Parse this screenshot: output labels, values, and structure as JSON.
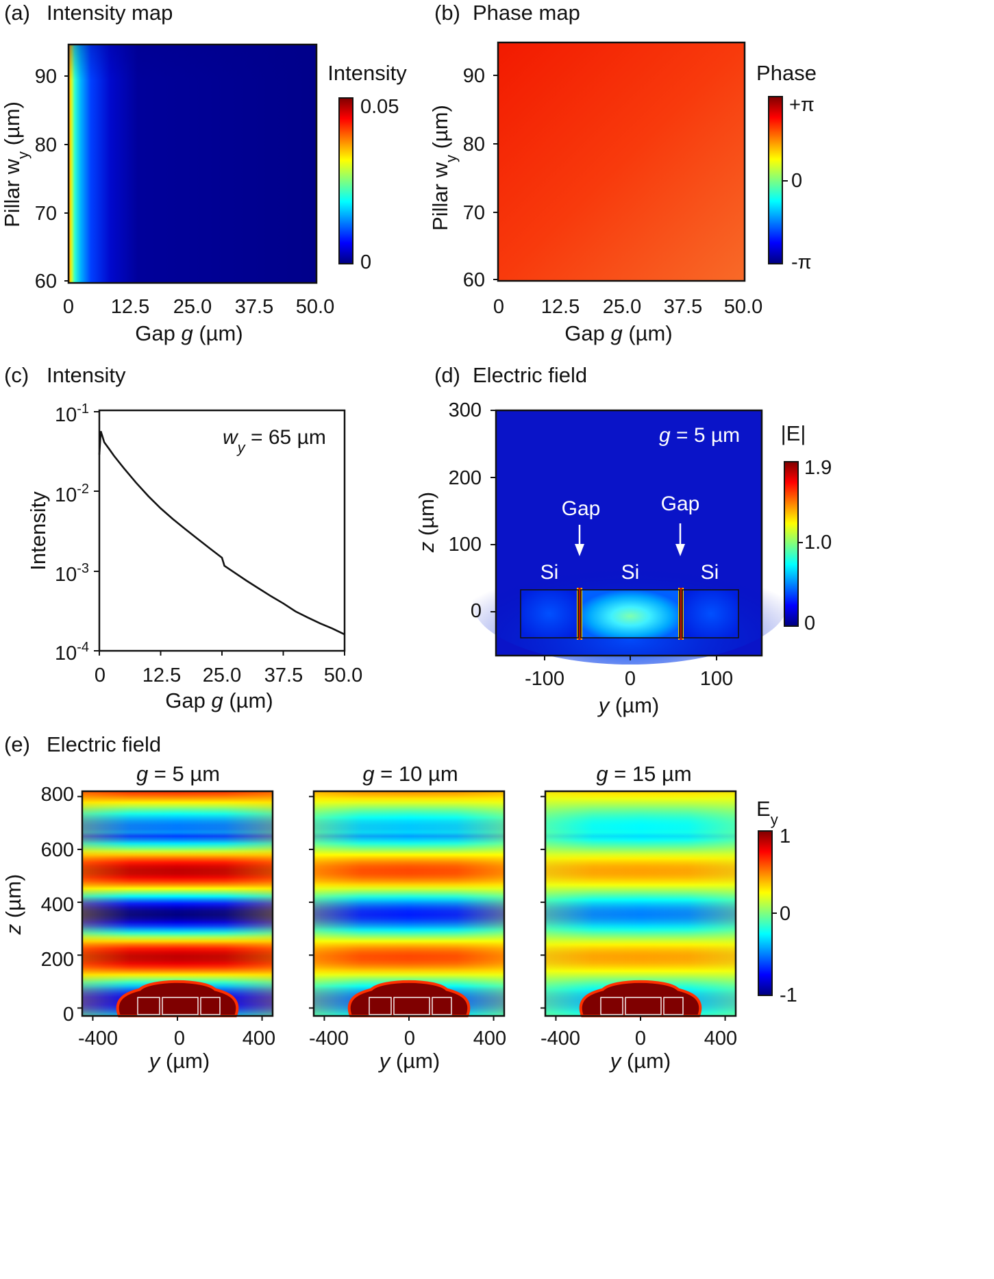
{
  "colors": {
    "jet": [
      "#00007f",
      "#0000ff",
      "#007fff",
      "#00ffff",
      "#7fff7f",
      "#ffff00",
      "#ff7f00",
      "#ff0000",
      "#7f0000"
    ],
    "axis": "#111111",
    "outline": "#ffffff"
  },
  "panels": {
    "a": {
      "letter": "(a)",
      "title": "Intensity map",
      "xlabel_pre": "Gap ",
      "xlabel_var": "g",
      "xlabel_post": " (µm)",
      "ylabel_pre": "Pillar  w",
      "ylabel_sub": "y",
      "ylabel_post": " (µm)",
      "x_ticks": [
        "0",
        "12.5",
        "25.0",
        "37.5",
        "50.0"
      ],
      "y_ticks": [
        "60",
        "70",
        "80",
        "90"
      ],
      "colorbar": {
        "title": "Intensity",
        "ticks": [
          "0.05",
          "0"
        ]
      }
    },
    "b": {
      "letter": "(b)",
      "title": "Phase map",
      "xlabel_pre": "Gap ",
      "xlabel_var": "g",
      "xlabel_post": " (µm)",
      "ylabel_pre": "Pillar  w",
      "ylabel_sub": "y",
      "ylabel_post": " (µm)",
      "x_ticks": [
        "0",
        "12.5",
        "25.0",
        "37.5",
        "50.0"
      ],
      "y_ticks": [
        "60",
        "70",
        "80",
        "90"
      ],
      "colorbar": {
        "title": "Phase",
        "ticks": [
          "+π",
          "0",
          "-π"
        ]
      }
    },
    "c": {
      "letter": "(c)",
      "title": "Intensity",
      "xlabel_pre": "Gap ",
      "xlabel_var": "g",
      "xlabel_post": " (µm)",
      "ylabel": "Intensity",
      "x_ticks": [
        "0",
        "12.5",
        "25.0",
        "37.5",
        "50.0"
      ],
      "y_tick_base": "10",
      "y_tick_exps": [
        "-1",
        "-2",
        "-3",
        "-4"
      ],
      "annotation_var": "w",
      "annotation_sub": "y",
      "annotation_rest": " = 65 µm"
    },
    "d": {
      "letter": "(d)",
      "title": "Electric field",
      "xlabel_var": "y",
      "xlabel_post": " (µm)",
      "ylabel_var": "z",
      "ylabel_post": " (µm)",
      "x_ticks": [
        "-100",
        "0",
        "100"
      ],
      "y_ticks": [
        "300",
        "200",
        "100",
        "0"
      ],
      "annotation_var": "g",
      "annotation_rest": " = 5 µm",
      "gap_labels": [
        "Gap",
        "Gap"
      ],
      "si_labels": [
        "Si",
        "Si",
        "Si"
      ],
      "colorbar": {
        "title": "|E|",
        "ticks": [
          "1.9",
          "1.0",
          "0"
        ]
      }
    },
    "e": {
      "letter": "(e)",
      "title": "Electric field",
      "ylabel_var": "z",
      "ylabel_post": " (µm)",
      "xlabel_var": "y",
      "xlabel_post": " (µm)",
      "x_ticks": [
        "-400",
        "0",
        "400"
      ],
      "y_ticks": [
        "800",
        "600",
        "400",
        "200",
        "0"
      ],
      "subplots": [
        {
          "title_var": "g",
          "title_rest": " = 5 µm"
        },
        {
          "title_var": "g",
          "title_rest": " = 10 µm"
        },
        {
          "title_var": "g",
          "title_rest": " = 15 µm"
        }
      ],
      "colorbar": {
        "title": "E",
        "title_sub": "y",
        "ticks": [
          "1",
          "0",
          "-1"
        ]
      }
    }
  },
  "chart_data": [
    {
      "type": "heatmap",
      "title": "Intensity map",
      "xlabel": "Gap g (µm)",
      "ylabel": "Pillar wy (µm)",
      "xlim": [
        0,
        50
      ],
      "ylim": [
        59.5,
        95
      ],
      "x_ticks": [
        0,
        12.5,
        25.0,
        37.5,
        50.0
      ],
      "y_ticks": [
        60,
        70,
        80,
        90
      ],
      "colorbar": {
        "label": "Intensity",
        "range": [
          0,
          0.05
        ],
        "colormap": "jet"
      },
      "description_values": {
        "max_near_g0": 0.05,
        "bulk_value": 0
      }
    },
    {
      "type": "heatmap",
      "title": "Phase map",
      "xlabel": "Gap g (µm)",
      "ylabel": "Pillar wy (µm)",
      "xlim": [
        0,
        50
      ],
      "ylim": [
        59.5,
        95
      ],
      "x_ticks": [
        0,
        12.5,
        25.0,
        37.5,
        50.0
      ],
      "y_ticks": [
        60,
        70,
        80,
        90
      ],
      "colorbar": {
        "label": "Phase",
        "range": [
          "-π",
          "+π"
        ],
        "colormap": "jet"
      }
    },
    {
      "type": "line",
      "title": "Intensity",
      "xlabel": "Gap g (µm)",
      "ylabel": "Intensity",
      "yscale": "log",
      "xlim": [
        0,
        50
      ],
      "ylim": [
        0.0001,
        0.1
      ],
      "series": [
        {
          "x": [
            0,
            0.3,
            0.6,
            1,
            2,
            3,
            5,
            7.5,
            10,
            12.5,
            15,
            17.5,
            20,
            22.5,
            25,
            25.5,
            27.5,
            30,
            32.5,
            35,
            37.5,
            40,
            42.5,
            45,
            47.5,
            50
          ],
          "y": [
            0.028,
            0.055,
            0.048,
            0.04,
            0.033,
            0.027,
            0.019,
            0.0125,
            0.0085,
            0.006,
            0.0044,
            0.0033,
            0.0025,
            0.0019,
            0.00145,
            0.00115,
            0.00095,
            0.00075,
            0.0006,
            0.00048,
            0.00039,
            0.00031,
            0.00026,
            0.00022,
            0.00019,
            0.00016
          ]
        }
      ]
    },
    {
      "type": "heatmap",
      "title": "Electric field",
      "xlabel": "y (µm)",
      "ylabel": "z (µm)",
      "xlim": [
        -150,
        150
      ],
      "ylim": [
        -50,
        300
      ],
      "x_ticks": [
        -100,
        0,
        100
      ],
      "y_ticks": [
        0,
        100,
        200,
        300
      ],
      "colorbar": {
        "label": "|E|",
        "range": [
          0,
          1.9
        ],
        "ticks": [
          0,
          1.0,
          1.9
        ],
        "colormap": "jet"
      },
      "gap_positions_y": [
        -58,
        58
      ]
    },
    {
      "type": "heatmap",
      "title": "g = 5 µm",
      "xlabel": "y (µm)",
      "ylabel": "z (µm)",
      "xlim": [
        -450,
        450
      ],
      "ylim": [
        -30,
        820
      ],
      "x_ticks": [
        -400,
        0,
        400
      ],
      "y_ticks": [
        0,
        200,
        400,
        600,
        800
      ],
      "colorbar": {
        "label": "Ey",
        "range": [
          -1,
          1
        ],
        "colormap": "jet"
      },
      "field_amplitude": 1.0
    },
    {
      "type": "heatmap",
      "title": "g = 10 µm",
      "xlabel": "y (µm)",
      "ylabel": "z (µm)",
      "xlim": [
        -450,
        450
      ],
      "ylim": [
        -30,
        820
      ],
      "x_ticks": [
        -400,
        0,
        400
      ],
      "y_ticks": [
        0,
        200,
        400,
        600,
        800
      ],
      "colorbar": {
        "label": "Ey",
        "range": [
          -1,
          1
        ],
        "colormap": "jet"
      },
      "field_amplitude": 0.7
    },
    {
      "type": "heatmap",
      "title": "g = 15 µm",
      "xlabel": "y (µm)",
      "ylabel": "z (µm)",
      "xlim": [
        -450,
        450
      ],
      "ylim": [
        -30,
        820
      ],
      "x_ticks": [
        -400,
        0,
        400
      ],
      "y_ticks": [
        0,
        200,
        400,
        600,
        800
      ],
      "colorbar": {
        "label": "Ey",
        "range": [
          -1,
          1
        ],
        "colormap": "jet"
      },
      "field_amplitude": 0.5
    }
  ]
}
